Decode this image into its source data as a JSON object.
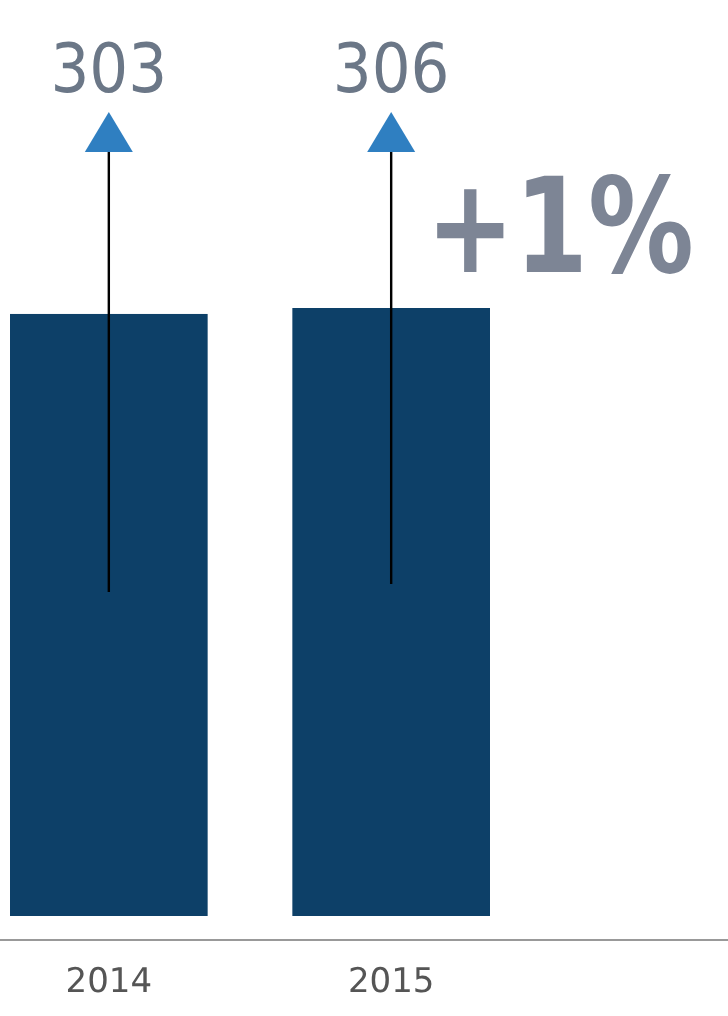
{
  "chart_data": {
    "type": "bar",
    "categories": [
      "2014",
      "2015"
    ],
    "values": [
      303,
      306
    ],
    "color": "#0d4068",
    "data_labels": true,
    "annotations": [
      "+1%"
    ]
  }
}
